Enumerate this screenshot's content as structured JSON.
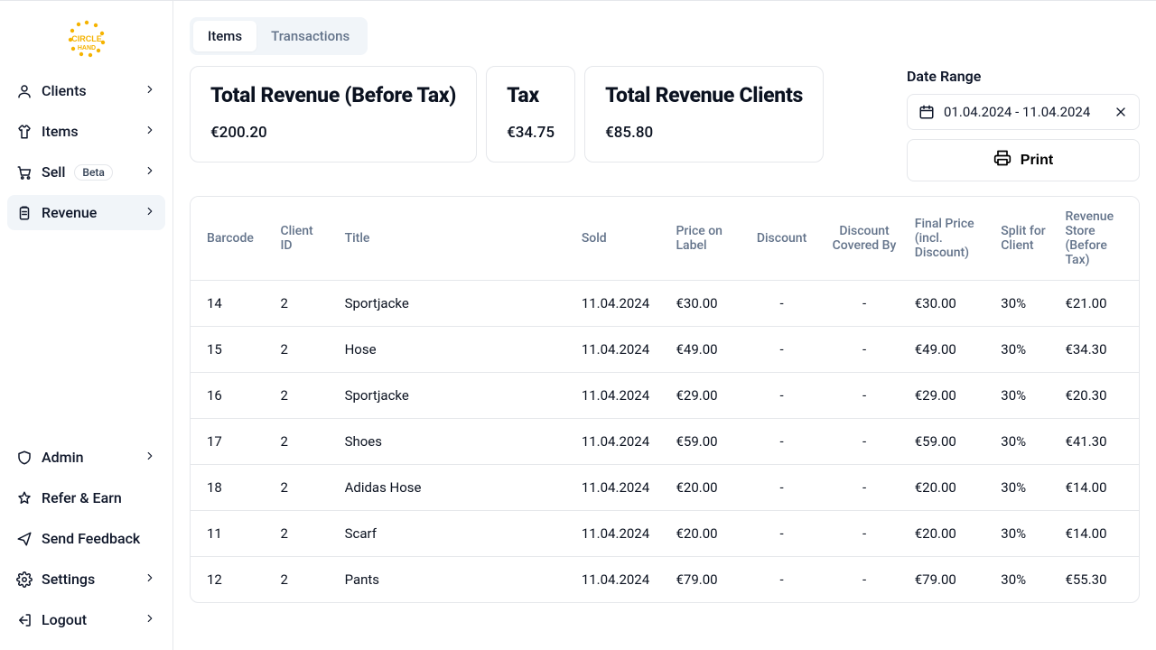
{
  "sidebar": {
    "top": [
      {
        "label": "Clients",
        "icon": "user",
        "chev": true
      },
      {
        "label": "Items",
        "icon": "shirt",
        "chev": true
      },
      {
        "label": "Sell",
        "icon": "cart",
        "chev": true,
        "badge": "Beta"
      },
      {
        "label": "Revenue",
        "icon": "clipboard",
        "chev": true,
        "active": true
      }
    ],
    "bottom": [
      {
        "label": "Admin",
        "icon": "shield",
        "chev": true
      },
      {
        "label": "Refer & Earn",
        "icon": "star",
        "chev": false
      },
      {
        "label": "Send Feedback",
        "icon": "send",
        "chev": false
      },
      {
        "label": "Settings",
        "icon": "gear",
        "chev": true
      },
      {
        "label": "Logout",
        "icon": "logout",
        "chev": true
      }
    ]
  },
  "tabs": {
    "items": "Items",
    "transactions": "Transactions",
    "active": "items"
  },
  "cards": {
    "totalRevenue": {
      "title": "Total Revenue (Before Tax)",
      "value": "€200.20"
    },
    "tax": {
      "title": "Tax",
      "value": "€34.75"
    },
    "clients": {
      "title": "Total Revenue Clients",
      "value": "€85.80"
    }
  },
  "dateRange": {
    "label": "Date Range",
    "value": "01.04.2024 - 11.04.2024"
  },
  "printLabel": "Print",
  "table": {
    "columns": [
      "Barcode",
      "Client ID",
      "Title",
      "Sold",
      "Price on Label",
      "Discount",
      "Discount Covered By",
      "Final Price (incl. Discount)",
      "Split for Client",
      "Revenue Store (Before Tax)"
    ],
    "rows": [
      {
        "barcode": "14",
        "client": "2",
        "title": "Sportjacke",
        "sold": "11.04.2024",
        "price": "€30.00",
        "discount": "-",
        "discountBy": "-",
        "final": "€30.00",
        "split": "30%",
        "revStore": "€21.00"
      },
      {
        "barcode": "15",
        "client": "2",
        "title": "Hose",
        "sold": "11.04.2024",
        "price": "€49.00",
        "discount": "-",
        "discountBy": "-",
        "final": "€49.00",
        "split": "30%",
        "revStore": "€34.30"
      },
      {
        "barcode": "16",
        "client": "2",
        "title": "Sportjacke",
        "sold": "11.04.2024",
        "price": "€29.00",
        "discount": "-",
        "discountBy": "-",
        "final": "€29.00",
        "split": "30%",
        "revStore": "€20.30"
      },
      {
        "barcode": "17",
        "client": "2",
        "title": "Shoes",
        "sold": "11.04.2024",
        "price": "€59.00",
        "discount": "-",
        "discountBy": "-",
        "final": "€59.00",
        "split": "30%",
        "revStore": "€41.30"
      },
      {
        "barcode": "18",
        "client": "2",
        "title": "Adidas Hose",
        "sold": "11.04.2024",
        "price": "€20.00",
        "discount": "-",
        "discountBy": "-",
        "final": "€20.00",
        "split": "30%",
        "revStore": "€14.00"
      },
      {
        "barcode": "11",
        "client": "2",
        "title": "Scarf",
        "sold": "11.04.2024",
        "price": "€20.00",
        "discount": "-",
        "discountBy": "-",
        "final": "€20.00",
        "split": "30%",
        "revStore": "€14.00"
      },
      {
        "barcode": "12",
        "client": "2",
        "title": "Pants",
        "sold": "11.04.2024",
        "price": "€79.00",
        "discount": "-",
        "discountBy": "-",
        "final": "€79.00",
        "split": "30%",
        "revStore": "€55.30"
      }
    ]
  },
  "style": {
    "background": "#ffffff",
    "border": "#e5e7eb",
    "textPrimary": "#0f172a",
    "textMuted": "#64748b",
    "activeBg": "#f1f5f9",
    "logoColor": "#f5b301"
  }
}
